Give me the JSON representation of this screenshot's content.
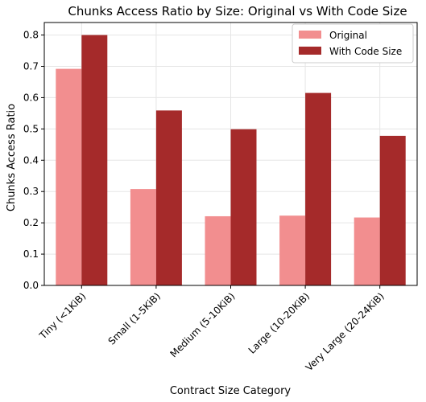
{
  "chart_data": {
    "type": "bar",
    "title": "Chunks Access Ratio by Size: Original vs With Code Size",
    "xlabel": "Contract Size Category",
    "ylabel": "Chunks Access Ratio",
    "categories": [
      "Tiny (<1KiB)",
      "Small (1-5KiB)",
      "Medium (5-10KiB)",
      "Large (10-20KiB)",
      "Very Large (20-24KiB)"
    ],
    "series": [
      {
        "name": "Original",
        "values": [
          0.692,
          0.308,
          0.221,
          0.223,
          0.217
        ],
        "color": "#f28e8f"
      },
      {
        "name": "With Code Size",
        "values": [
          0.8,
          0.559,
          0.499,
          0.615,
          0.478
        ],
        "color": "#a52a2a"
      }
    ],
    "ylim": [
      0,
      0.84
    ],
    "yticks": [
      "0.0",
      "0.1",
      "0.2",
      "0.3",
      "0.4",
      "0.5",
      "0.6",
      "0.7",
      "0.8"
    ],
    "grid": true,
    "legend_position": "top-right"
  }
}
